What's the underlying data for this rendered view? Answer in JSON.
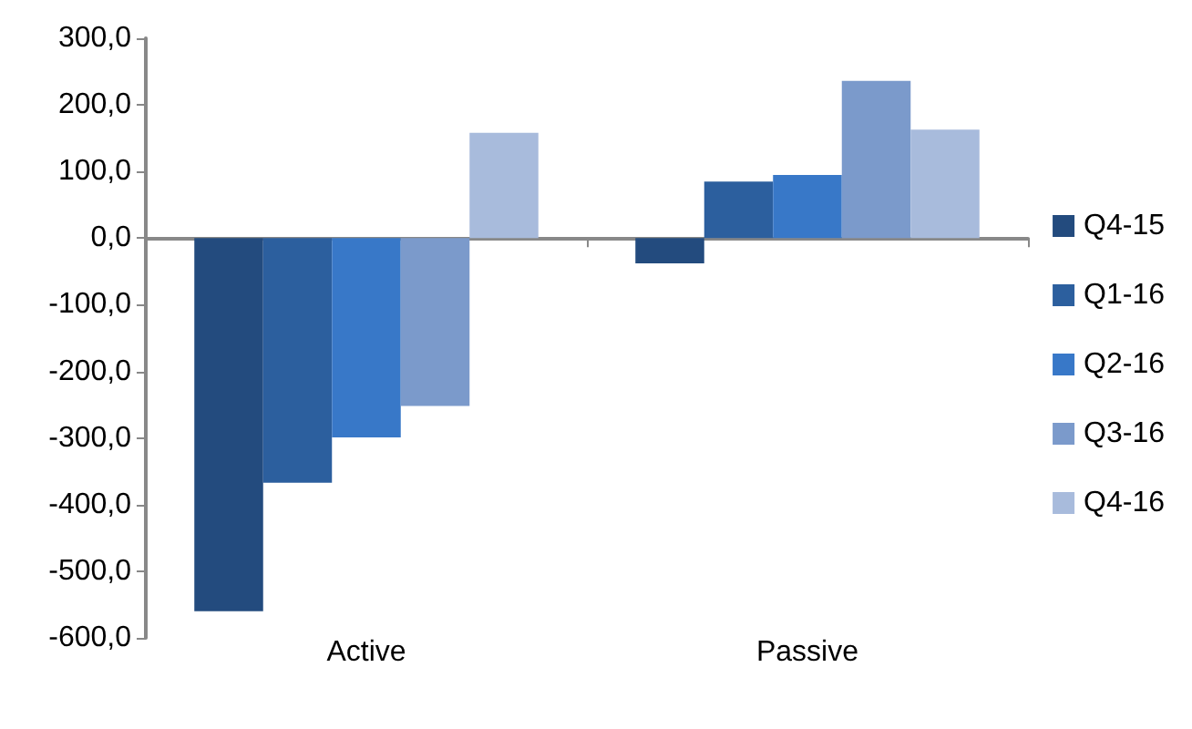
{
  "chart_data": {
    "type": "bar",
    "categories": [
      "Active",
      "Passive"
    ],
    "series": [
      {
        "name": "Q4-15",
        "color": "#234b7e",
        "values": [
          -560,
          -38
        ]
      },
      {
        "name": "Q1-16",
        "color": "#2c5f9e",
        "values": [
          -367,
          85
        ]
      },
      {
        "name": "Q2-16",
        "color": "#3878c8",
        "values": [
          -299,
          95
        ]
      },
      {
        "name": "Q3-16",
        "color": "#7b9acb",
        "values": [
          -252,
          236
        ]
      },
      {
        "name": "Q4-16",
        "color": "#a8bbdc",
        "values": [
          158,
          163
        ]
      }
    ],
    "ylim": [
      -600,
      300
    ],
    "yticks": [
      {
        "value": -600,
        "label": "-600,0"
      },
      {
        "value": -500,
        "label": "-500,0"
      },
      {
        "value": -400,
        "label": "-400,0"
      },
      {
        "value": -300,
        "label": "-300,0"
      },
      {
        "value": -200,
        "label": "-200,0"
      },
      {
        "value": -100,
        "label": "-100,0"
      },
      {
        "value": 0,
        "label": "0,0"
      },
      {
        "value": 100,
        "label": "100,0"
      },
      {
        "value": 200,
        "label": "200,0"
      },
      {
        "value": 300,
        "label": "300,0"
      }
    ],
    "legend": "right"
  }
}
